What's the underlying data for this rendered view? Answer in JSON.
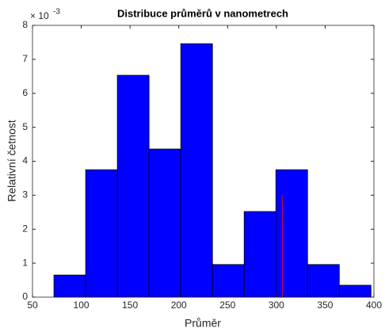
{
  "chart_data": {
    "type": "histogram",
    "title": "Distribuce průměrů v nanometrech",
    "x_label": "Průměr",
    "y_label": "Relativní četnost",
    "y_scale_label": {
      "base": "× 10",
      "exponent": "-3"
    },
    "bins": [
      72,
      104.5,
      137,
      169.5,
      202,
      234.5,
      267,
      299.5,
      332,
      364.5,
      397
    ],
    "values": [
      0.65,
      3.75,
      6.53,
      4.36,
      7.46,
      0.96,
      2.52,
      3.75,
      0.96,
      0.35
    ],
    "color": "#0000ff",
    "reference_line": {
      "x": 306,
      "y": [
        0,
        3
      ],
      "color": "#ff0000"
    },
    "xlim": [
      50,
      400
    ],
    "xticks": [
      50,
      100,
      150,
      200,
      250,
      300,
      350,
      400
    ],
    "ylim": [
      0,
      8
    ],
    "yticks": [
      0,
      1,
      2,
      3,
      4,
      5,
      6,
      7,
      8
    ]
  }
}
